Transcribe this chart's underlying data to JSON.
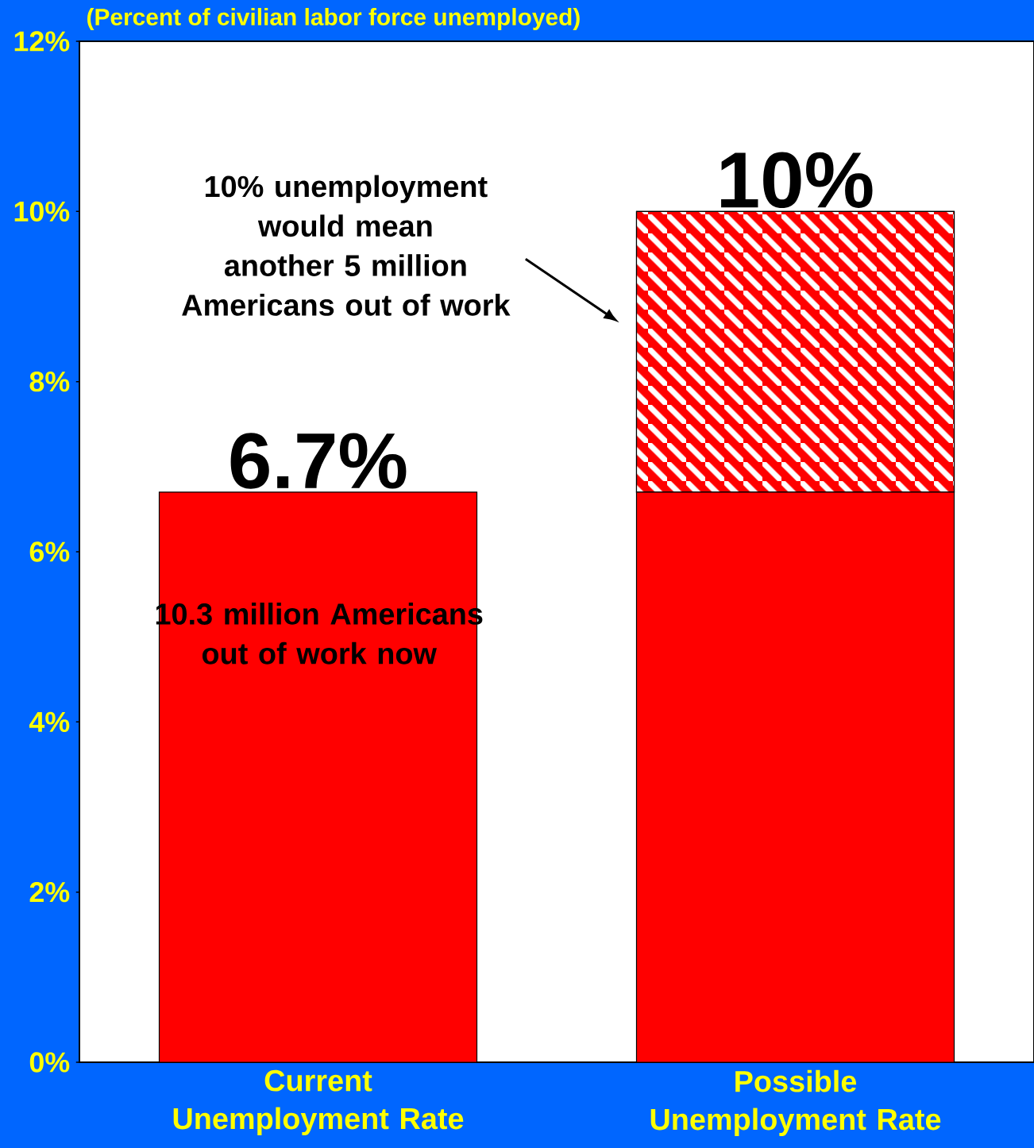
{
  "chart_data": {
    "type": "bar",
    "stacked": true,
    "title": "(Percent of civilian labor force unemployed)",
    "categories": [
      "Current Unemployment Rate",
      "Possible Unemployment Rate"
    ],
    "series": [
      {
        "color": "#ff0000",
        "values": [
          6.7,
          6.7
        ]
      },
      {
        "color": "#ff0000",
        "values": [
          null,
          3.3
        ]
      }
    ],
    "totals": [
      "6.7%",
      "10%"
    ],
    "ylim": [
      0,
      12
    ],
    "yticks": [
      {
        "value": 0,
        "label": "0%"
      },
      {
        "value": 2,
        "label": "2%"
      },
      {
        "value": 4,
        "label": "4%"
      },
      {
        "value": 6,
        "label": "6%"
      },
      {
        "value": 8,
        "label": "8%"
      },
      {
        "value": 10,
        "label": "10%"
      },
      {
        "value": 12,
        "label": "12%"
      }
    ],
    "annotations": [
      "10% unemployment would mean another 5 million Americans out of work",
      "10.3 million Americans out of work now"
    ]
  }
}
